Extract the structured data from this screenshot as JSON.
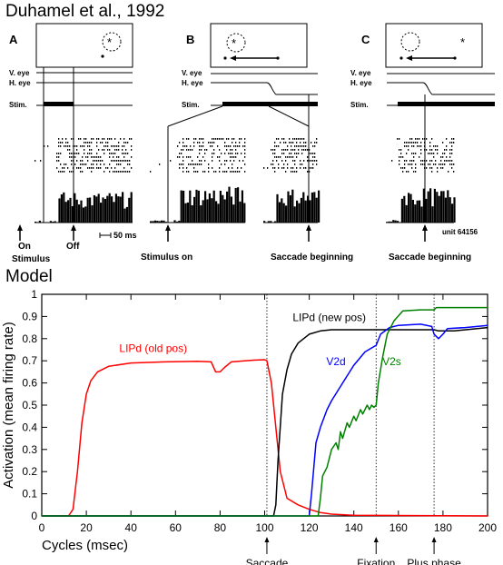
{
  "citation": "Duhamel et al., 1992",
  "model_title": "Model",
  "panels": [
    {
      "letter": "A",
      "trace_labels": [
        "V. eye",
        "H. eye",
        "Stim."
      ],
      "below_labels": [
        "On",
        "Stimulus",
        "Off"
      ],
      "scale_bar": "50 ms"
    },
    {
      "letter": "B",
      "trace_labels": [
        "V. eye",
        "H. eye",
        "Stim."
      ],
      "below_labels": [
        "Stimulus on",
        "Saccade beginning"
      ]
    },
    {
      "letter": "C",
      "trace_labels": [
        "V. eye",
        "H. eye",
        "Stim."
      ],
      "below_labels": [
        "Saccade beginning"
      ],
      "unit_label": "unit 64156"
    }
  ],
  "chart_data": {
    "type": "line",
    "xlabel": "Cycles (msec)",
    "ylabel": "Activation (mean firing rate)",
    "xlim": [
      0,
      200
    ],
    "ylim": [
      0,
      1
    ],
    "xticks": [
      0,
      20,
      40,
      60,
      80,
      100,
      120,
      140,
      160,
      180,
      200
    ],
    "yticks": [
      0,
      0.1,
      0.2,
      0.3,
      0.4,
      0.5,
      0.6,
      0.7,
      0.8,
      0.9,
      1
    ],
    "grid": false,
    "events": [
      {
        "x": 101,
        "label": "Saccade"
      },
      {
        "x": 150,
        "label": "Fixation"
      },
      {
        "x": 176,
        "label": "Plus phase"
      }
    ],
    "series": [
      {
        "name": "LIPd (old pos)",
        "color": "#ff0000",
        "points": [
          [
            0,
            0
          ],
          [
            12,
            0
          ],
          [
            14,
            0.03
          ],
          [
            16,
            0.2
          ],
          [
            18,
            0.42
          ],
          [
            20,
            0.55
          ],
          [
            22,
            0.61
          ],
          [
            25,
            0.65
          ],
          [
            30,
            0.675
          ],
          [
            40,
            0.69
          ],
          [
            55,
            0.695
          ],
          [
            70,
            0.698
          ],
          [
            76,
            0.695
          ],
          [
            78,
            0.65
          ],
          [
            80,
            0.65
          ],
          [
            82,
            0.67
          ],
          [
            85,
            0.695
          ],
          [
            95,
            0.703
          ],
          [
            100,
            0.705
          ],
          [
            101,
            0.7
          ],
          [
            103,
            0.6
          ],
          [
            105,
            0.4
          ],
          [
            107,
            0.2
          ],
          [
            110,
            0.08
          ],
          [
            115,
            0.05
          ],
          [
            120,
            0.03
          ],
          [
            125,
            0.015
          ],
          [
            130,
            0.008
          ],
          [
            140,
            0.003
          ],
          [
            200,
            0
          ]
        ]
      },
      {
        "name": "LIPd (new pos)",
        "color": "#000000",
        "points": [
          [
            0,
            0
          ],
          [
            104,
            0
          ],
          [
            105,
            0.05
          ],
          [
            106,
            0.25
          ],
          [
            108,
            0.55
          ],
          [
            110,
            0.66
          ],
          [
            112,
            0.73
          ],
          [
            115,
            0.78
          ],
          [
            120,
            0.82
          ],
          [
            125,
            0.835
          ],
          [
            130,
            0.84
          ],
          [
            150,
            0.84
          ],
          [
            176,
            0.84
          ],
          [
            178,
            0.835
          ],
          [
            185,
            0.835
          ],
          [
            200,
            0.85
          ]
        ]
      },
      {
        "name": "V2d",
        "color": "#0000ff",
        "points": [
          [
            0,
            0
          ],
          [
            120,
            0
          ],
          [
            121,
            0.1
          ],
          [
            123,
            0.33
          ],
          [
            125,
            0.4
          ],
          [
            128,
            0.48
          ],
          [
            130,
            0.52
          ],
          [
            135,
            0.6
          ],
          [
            140,
            0.68
          ],
          [
            145,
            0.74
          ],
          [
            150,
            0.77
          ],
          [
            152,
            0.82
          ],
          [
            156,
            0.85
          ],
          [
            160,
            0.86
          ],
          [
            170,
            0.865
          ],
          [
            175,
            0.855
          ],
          [
            176,
            0.82
          ],
          [
            178,
            0.8
          ],
          [
            180,
            0.82
          ],
          [
            182,
            0.845
          ],
          [
            190,
            0.85
          ],
          [
            200,
            0.86
          ]
        ]
      },
      {
        "name": "V2s",
        "color": "#008000",
        "points": [
          [
            0,
            0
          ],
          [
            124,
            0
          ],
          [
            125,
            0.08
          ],
          [
            126,
            0.18
          ],
          [
            128,
            0.22
          ],
          [
            130,
            0.3
          ],
          [
            132,
            0.33
          ],
          [
            133,
            0.3
          ],
          [
            134,
            0.38
          ],
          [
            135,
            0.35
          ],
          [
            137,
            0.42
          ],
          [
            138,
            0.4
          ],
          [
            140,
            0.45
          ],
          [
            141,
            0.43
          ],
          [
            143,
            0.48
          ],
          [
            144,
            0.46
          ],
          [
            146,
            0.5
          ],
          [
            147,
            0.48
          ],
          [
            148,
            0.5
          ],
          [
            149,
            0.49
          ],
          [
            150,
            0.5
          ],
          [
            151,
            0.6
          ],
          [
            153,
            0.72
          ],
          [
            155,
            0.82
          ],
          [
            158,
            0.88
          ],
          [
            162,
            0.925
          ],
          [
            170,
            0.93
          ],
          [
            176,
            0.93
          ],
          [
            177,
            0.94
          ],
          [
            180,
            0.94
          ],
          [
            200,
            0.94
          ]
        ]
      }
    ],
    "annotations": [
      {
        "text": "LIPd (old pos)",
        "x": 50,
        "y": 0.74,
        "color": "#ff0000"
      },
      {
        "text": "LIPd (new pos)",
        "x": 129,
        "y": 0.88,
        "color": "#000000"
      },
      {
        "text": "V2d",
        "x": 132,
        "y": 0.68,
        "color": "#0000ff"
      },
      {
        "text": "V2s",
        "x": 157,
        "y": 0.68,
        "color": "#008000"
      }
    ]
  }
}
